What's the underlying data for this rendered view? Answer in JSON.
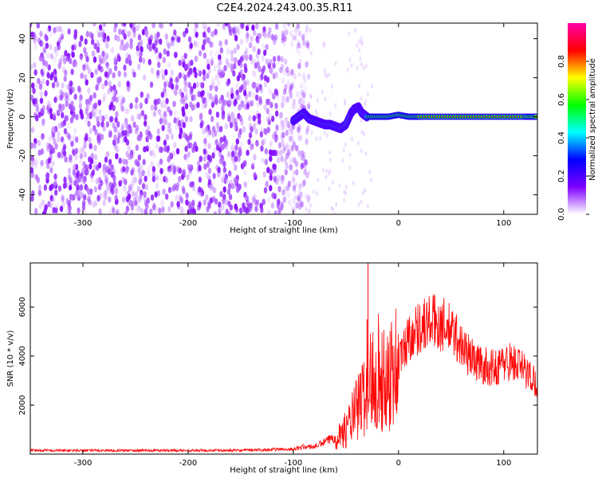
{
  "title": "C2E4.2024.243.00.35.R11",
  "chart_data": [
    {
      "type": "heatmap",
      "xlabel": "Height of straight line (km)",
      "ylabel": "Frequency (Hz)",
      "xlim": [
        -350,
        132
      ],
      "ylim": [
        -50,
        48
      ],
      "xticks": [
        -300,
        -200,
        -100,
        0,
        100
      ],
      "yticks": [
        -40,
        -20,
        0,
        20,
        40
      ],
      "colorbar": {
        "label": "Normalized spectral amplitude",
        "ticks": [
          "0.0",
          "0.2",
          "0.4",
          "0.6",
          "0.8"
        ],
        "tick_values": [
          0.0,
          0.2,
          0.4,
          0.6,
          0.8
        ],
        "range": [
          0,
          1
        ],
        "colors": [
          "#ffffff",
          "#7f00ff",
          "#0000ff",
          "#00ffff",
          "#00ff00",
          "#ffff00",
          "#ff0000",
          "#ff00aa"
        ]
      },
      "signal_track": {
        "x": [
          -100,
          -95,
          -90,
          -85,
          -80,
          -75,
          -70,
          -65,
          -60,
          -55,
          -50,
          -45,
          -42,
          -38,
          -35,
          -30,
          -20,
          -10,
          0,
          10,
          20,
          40,
          60,
          80,
          100,
          120,
          132
        ],
        "y": [
          -2,
          0,
          2,
          -1,
          -2,
          -3,
          -4,
          -4,
          -5,
          -6,
          -4,
          2,
          4,
          5,
          2,
          0,
          0,
          0,
          1,
          0,
          0,
          0,
          0,
          0,
          0,
          0,
          0
        ]
      }
    },
    {
      "type": "line",
      "xlabel": "Height of straight line (km)",
      "ylabel": "SNR (10 * v/v)",
      "xlim": [
        -350,
        132
      ],
      "ylim": [
        0,
        7800
      ],
      "xticks": [
        -300,
        -200,
        -100,
        0,
        100
      ],
      "yticks": [
        2000,
        4000,
        6000
      ],
      "series": [
        {
          "color": "#ff0000",
          "x": [
            -350,
            -300,
            -250,
            -200,
            -150,
            -110,
            -100,
            -90,
            -80,
            -70,
            -60,
            -50,
            -40,
            -35,
            -30,
            -25,
            -20,
            -15,
            -10,
            -5,
            0,
            5,
            10,
            15,
            20,
            25,
            30,
            35,
            40,
            45,
            50,
            55,
            60,
            70,
            80,
            90,
            100,
            105,
            110,
            115,
            120,
            125,
            132
          ],
          "y": [
            150,
            150,
            150,
            150,
            150,
            200,
            200,
            300,
            300,
            500,
            700,
            1000,
            1800,
            2200,
            2700,
            3200,
            3600,
            2800,
            3300,
            3500,
            3700,
            4300,
            4800,
            5000,
            5200,
            5300,
            5400,
            5400,
            5300,
            5200,
            5000,
            4800,
            4400,
            3900,
            3600,
            3500,
            3700,
            3800,
            3700,
            3600,
            3400,
            3200,
            2900
          ]
        }
      ],
      "spikes": [
        {
          "x": -29,
          "y": 7800
        },
        {
          "x": -30,
          "y": 5500
        }
      ]
    }
  ]
}
